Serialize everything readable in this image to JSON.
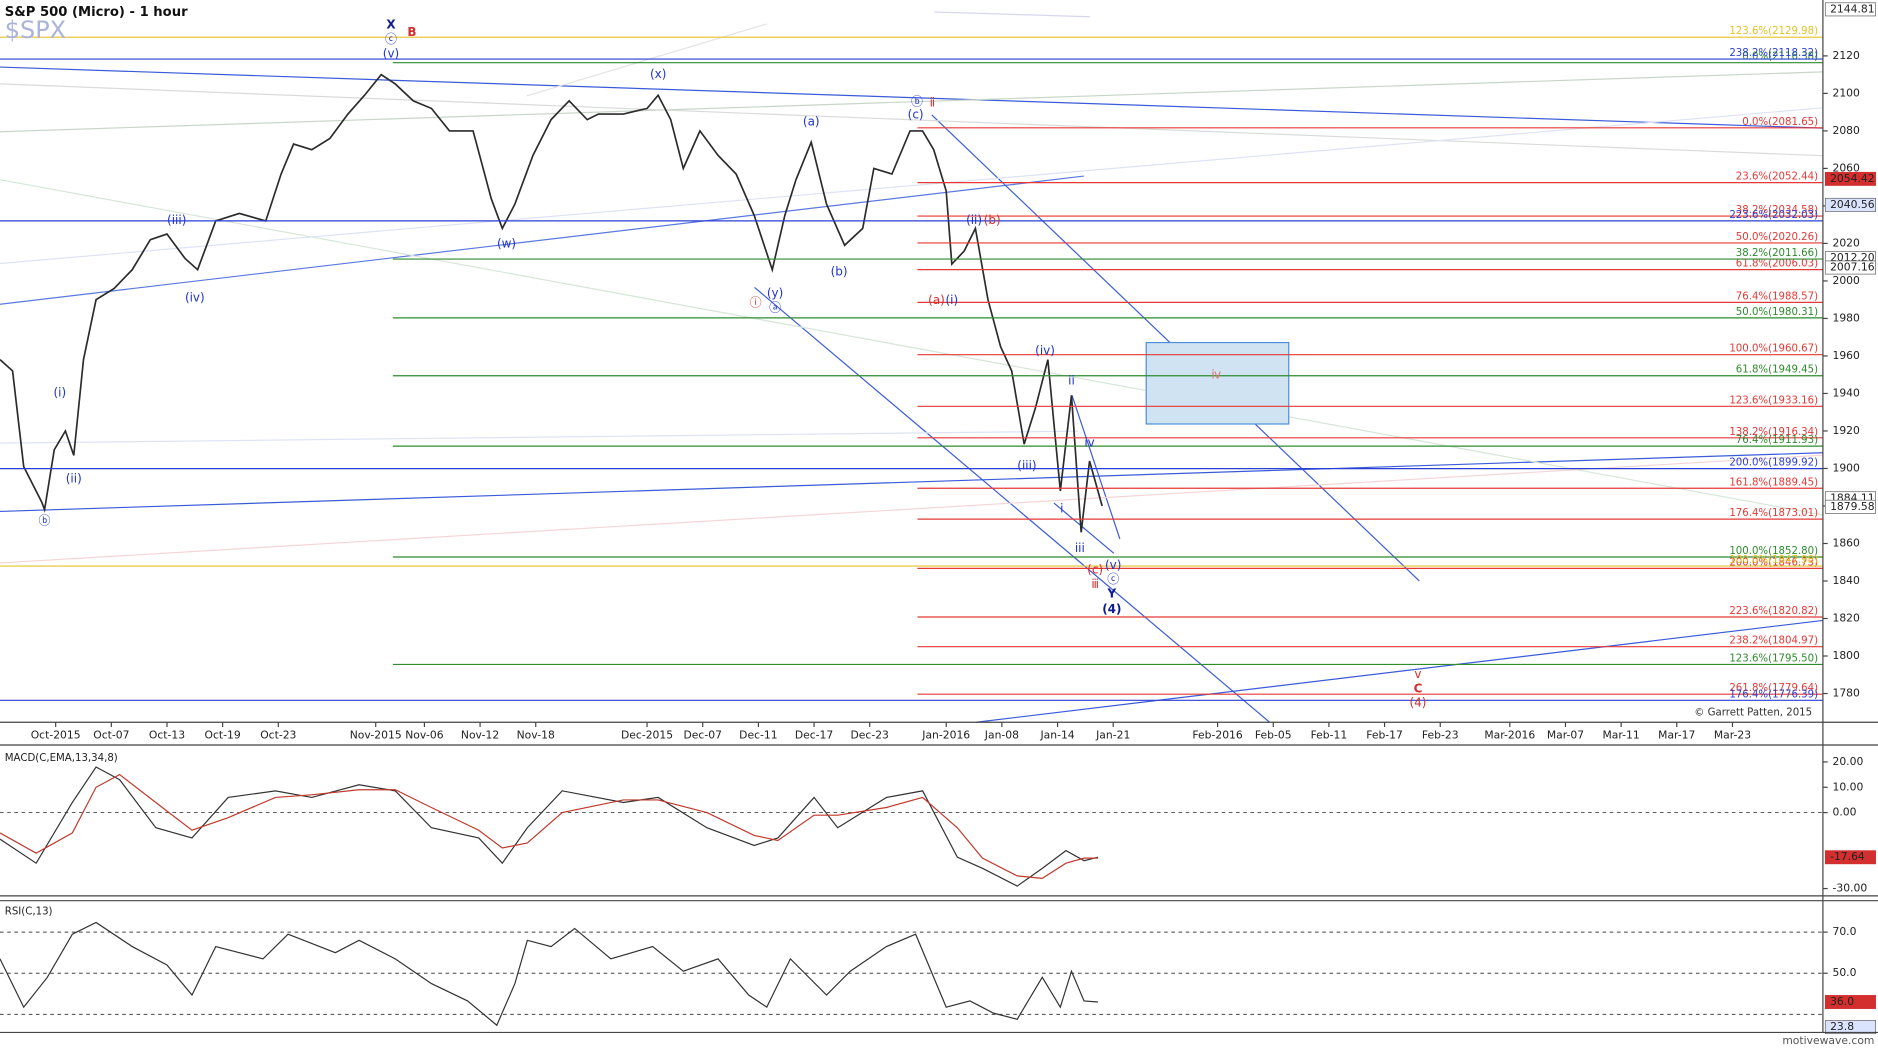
{
  "chart_data": [
    {
      "type": "line",
      "title": "S&P 500 (Micro) - 1 hour",
      "symbol": "$SPX",
      "credit": "© Garrett Patten, 2015",
      "watermark": "motivewave.com",
      "xlim": [
        -4,
        127
      ],
      "xticks": [
        {
          "value": 0,
          "label": "Oct-2015"
        },
        {
          "value": 4,
          "label": "Oct-07"
        },
        {
          "value": 8,
          "label": "Oct-13"
        },
        {
          "value": 12,
          "label": "Oct-19"
        },
        {
          "value": 16,
          "label": "Oct-23"
        },
        {
          "value": 23,
          "label": "Nov-2015"
        },
        {
          "value": 26.5,
          "label": "Nov-06"
        },
        {
          "value": 30.5,
          "label": "Nov-12"
        },
        {
          "value": 34.5,
          "label": "Nov-18"
        },
        {
          "value": 42.5,
          "label": "Dec-2015"
        },
        {
          "value": 46.5,
          "label": "Dec-07"
        },
        {
          "value": 50.5,
          "label": "Dec-11"
        },
        {
          "value": 54.5,
          "label": "Dec-17"
        },
        {
          "value": 58.5,
          "label": "Dec-23"
        },
        {
          "value": 64,
          "label": "Jan-2016"
        },
        {
          "value": 68,
          "label": "Jan-08"
        },
        {
          "value": 72,
          "label": "Jan-14"
        },
        {
          "value": 76,
          "label": "Jan-21"
        },
        {
          "value": 83.5,
          "label": "Feb-2016"
        },
        {
          "value": 87.5,
          "label": "Feb-05"
        },
        {
          "value": 91.5,
          "label": "Feb-11"
        },
        {
          "value": 95.5,
          "label": "Feb-17"
        },
        {
          "value": 99.5,
          "label": "Feb-23"
        },
        {
          "value": 104.5,
          "label": "Mar-2016"
        },
        {
          "value": 108.5,
          "label": "Mar-07"
        },
        {
          "value": 112.5,
          "label": "Mar-11"
        },
        {
          "value": 116.5,
          "label": "Mar-17"
        },
        {
          "value": 120.5,
          "label": "Mar-23"
        }
      ],
      "ylim": [
        1764.7,
        2149.8
      ],
      "yticks": [
        1780,
        1800,
        1820,
        1840,
        1860,
        1880,
        1900,
        1920,
        1940,
        1960,
        1980,
        2000,
        2020,
        2040,
        2060,
        2080,
        2100,
        2120
      ],
      "x": [
        -4.0,
        -3.1,
        -2.3,
        -1.0,
        -0.8,
        -0.1,
        0.7,
        1.3,
        2.0,
        2.9,
        4.2,
        5.5,
        6.8,
        8.0,
        9.3,
        10.2,
        11.5,
        13.2,
        15.1,
        16.2,
        17.1,
        18.4,
        19.7,
        21.0,
        22.2,
        23.4,
        24.4,
        25.7,
        27.0,
        28.3,
        30.0,
        31.3,
        32.1,
        33.0,
        34.3,
        35.6,
        36.9,
        38.2,
        39.0,
        40.8,
        42.5,
        43.3,
        44.2,
        45.1,
        46.3,
        47.6,
        48.9,
        50.2,
        51.5,
        52.4,
        53.2,
        54.3,
        55.4,
        56.7,
        58.0,
        58.8,
        60.1,
        61.4,
        62.3,
        63.1,
        64.0,
        64.4,
        65.3,
        66.1,
        67.0,
        67.9,
        68.7,
        69.6,
        70.4,
        71.3,
        72.2,
        73.0,
        73.7,
        74.3,
        75.2
      ],
      "series": [
        {
          "color": "#2b2b2b",
          "values": [
            1958,
            1952,
            1901,
            1882,
            1878,
            1910,
            1920,
            1907,
            1958,
            1990,
            1996,
            2006,
            2022,
            2025,
            2012,
            2006,
            2032,
            2036,
            2032,
            2057,
            2073,
            2070,
            2076,
            2089,
            2099,
            2110,
            2105,
            2096,
            2092,
            2080,
            2080,
            2044,
            2028,
            2041,
            2067,
            2086,
            2096,
            2086,
            2089,
            2089,
            2092,
            2099,
            2086,
            2060,
            2080,
            2067,
            2057,
            2035,
            2006,
            2035,
            2054,
            2074,
            2041,
            2019,
            2028,
            2060,
            2057,
            2080,
            2080,
            2070,
            2048,
            2009,
            2016,
            2028,
            1990,
            1965,
            1952,
            1913,
            1932,
            1958,
            1888,
            1939,
            1866,
            1904,
            1880
          ]
        }
      ],
      "price_labels": [
        {
          "value": 2144.81,
          "label": "2144.81",
          "color": "#ffffff"
        },
        {
          "value": 2054.42,
          "label": "2054.42",
          "color": "#d32f2f"
        },
        {
          "value": 2040.56,
          "label": "2040.56",
          "color": "#dbe4ff"
        },
        {
          "value": 2012.2,
          "label": "2012.20",
          "color": "#ffffff"
        },
        {
          "value": 2007.16,
          "label": "2007.16",
          "color": "#ffffff"
        },
        {
          "value": 1884.11,
          "label": "1884.11",
          "color": "#ffffff"
        },
        {
          "value": 1879.58,
          "label": "1879.58",
          "color": "#ffffff"
        }
      ],
      "fib_sets": [
        {
          "color": "#e53935",
          "levels": [
            {
              "value": 2081.65,
              "label": "0.0%(2081.65)"
            },
            {
              "value": 2052.44,
              "label": "23.6%(2052.44)"
            },
            {
              "value": 2034.58,
              "label": "38.2%(2034.58)"
            },
            {
              "value": 2020.26,
              "label": "50.0%(2020.26)"
            },
            {
              "value": 2006.03,
              "label": "61.8%(2006.03)"
            },
            {
              "value": 1988.57,
              "label": "76.4%(1988.57)"
            },
            {
              "value": 1960.67,
              "label": "100.0%(1960.67)"
            },
            {
              "value": 1933.16,
              "label": "123.6%(1933.16)"
            },
            {
              "value": 1916.34,
              "label": "138.2%(1916.34)"
            },
            {
              "value": 1889.45,
              "label": "161.8%(1889.45)"
            },
            {
              "value": 1873.01,
              "label": "176.4%(1873.01)"
            },
            {
              "value": 1846.73,
              "label": "200.0%(1846.73)"
            },
            {
              "value": 1820.82,
              "label": "223.6%(1820.82)"
            },
            {
              "value": 1804.97,
              "label": "238.2%(1804.97)"
            },
            {
              "value": 1779.64,
              "label": "261.8%(1779.64)"
            }
          ]
        },
        {
          "color": "#2e8b2e",
          "levels": [
            {
              "value": 2116.38,
              "label": "0.0%(2116.38)"
            },
            {
              "value": 2011.66,
              "label": "38.2%(2011.66)"
            },
            {
              "value": 1980.31,
              "label": "50.0%(1980.31)"
            },
            {
              "value": 1949.45,
              "label": "61.8%(1949.45)"
            },
            {
              "value": 1911.93,
              "label": "76.4%(1911.93)"
            },
            {
              "value": 1852.8,
              "label": "100.0%(1852.80)"
            },
            {
              "value": 1795.5,
              "label": "123.6%(1795.50)"
            }
          ]
        },
        {
          "color": "#2a3fd6",
          "levels": [
            {
              "value": 2118.32,
              "label": "238.2%(2118.32)"
            },
            {
              "value": 2032.03,
              "label": "223.6%(2032.03)"
            },
            {
              "value": 1899.92,
              "label": "200.0%(1899.92)"
            },
            {
              "value": 1776.39,
              "label": "176.4%(1776.39)"
            }
          ]
        },
        {
          "color": "#e6c229",
          "levels": [
            {
              "value": 2129.98,
              "label": "123.6%(2129.98)"
            },
            {
              "value": 1847.98,
              "label": "100.0%(1847.98)"
            }
          ]
        }
      ],
      "annotations": [
        {
          "text": "X",
          "x": 24.1,
          "y": 2136.4,
          "color": "#0d1b8c",
          "bold": true
        },
        {
          "text": "B",
          "x": 25.6,
          "y": 2132.6,
          "color": "#d32f2f",
          "bold": true
        },
        {
          "text": "ⓒ",
          "x": 24.1,
          "y": 2128.7,
          "color": "#2233cc",
          "bold": false
        },
        {
          "text": "(v)",
          "x": 24.1,
          "y": 2121.1,
          "color": "#2233cc",
          "bold": false
        },
        {
          "text": "(x)",
          "x": 43.3,
          "y": 2110.2,
          "color": "#2233cc",
          "bold": false
        },
        {
          "text": "(a)",
          "x": 54.3,
          "y": 2084.7,
          "color": "#2233cc",
          "bold": false
        },
        {
          "text": "ⓑ",
          "x": 61.9,
          "y": 2095.5,
          "color": "#2233cc",
          "bold": false
        },
        {
          "text": "ⅱ",
          "x": 63.0,
          "y": 2094.9,
          "color": "#d32f2f",
          "bold": false
        },
        {
          "text": "(c)",
          "x": 61.8,
          "y": 2088.5,
          "color": "#2233cc",
          "bold": false
        },
        {
          "text": "(w)",
          "x": 32.4,
          "y": 2019.6,
          "color": "#2233cc",
          "bold": false
        },
        {
          "text": "(iii)",
          "x": 8.7,
          "y": 2032.3,
          "color": "#2233cc",
          "bold": false
        },
        {
          "text": "(iv)",
          "x": 10.0,
          "y": 1990.8,
          "color": "#2233cc",
          "bold": false
        },
        {
          "text": "(i)",
          "x": 0.3,
          "y": 1940.3,
          "color": "#2233cc",
          "bold": false
        },
        {
          "text": "(ii)",
          "x": 1.3,
          "y": 1894.3,
          "color": "#2233cc",
          "bold": false
        },
        {
          "text": "ⓑ",
          "x": -0.8,
          "y": 1872.0,
          "color": "#2233cc",
          "bold": false
        },
        {
          "text": "(b)",
          "x": 56.3,
          "y": 2004.8,
          "color": "#2233cc",
          "bold": false
        },
        {
          "text": "(y)",
          "x": 51.7,
          "y": 1993.3,
          "color": "#2233cc",
          "bold": false
        },
        {
          "text": "ⓐ",
          "x": 51.7,
          "y": 1985.7,
          "color": "#2233cc",
          "bold": false
        },
        {
          "text": "ⓘ",
          "x": 50.3,
          "y": 1988.2,
          "color": "#d32f2f",
          "bold": false
        },
        {
          "text": "(ii)",
          "x": 66.0,
          "y": 2032.3,
          "color": "#2233cc",
          "bold": false
        },
        {
          "text": "(b)",
          "x": 67.3,
          "y": 2032.3,
          "color": "#d32f2f",
          "bold": false
        },
        {
          "text": "(a)",
          "x": 63.3,
          "y": 1989.5,
          "color": "#d32f2f",
          "bold": false
        },
        {
          "text": "(i)",
          "x": 64.4,
          "y": 1989.5,
          "color": "#2233cc",
          "bold": false
        },
        {
          "text": "(iv)",
          "x": 71.1,
          "y": 1962.7,
          "color": "#2233cc",
          "bold": false
        },
        {
          "text": "ii",
          "x": 73.0,
          "y": 1946.7,
          "color": "#2233cc",
          "bold": false
        },
        {
          "text": "(iii)",
          "x": 69.8,
          "y": 1901.4,
          "color": "#2233cc",
          "bold": false
        },
        {
          "text": "iv",
          "x": 74.3,
          "y": 1913.5,
          "color": "#2233cc",
          "bold": false
        },
        {
          "text": "i",
          "x": 72.3,
          "y": 1878.4,
          "color": "#2233cc",
          "bold": false
        },
        {
          "text": "iii",
          "x": 73.6,
          "y": 1857.3,
          "color": "#2233cc",
          "bold": false
        },
        {
          "text": "(v)",
          "x": 76.0,
          "y": 1848.3,
          "color": "#2233cc",
          "bold": false
        },
        {
          "text": "(c)",
          "x": 74.7,
          "y": 1845.8,
          "color": "#d32f2f",
          "bold": false
        },
        {
          "text": "ⓒ",
          "x": 76.0,
          "y": 1840.7,
          "color": "#2233cc",
          "bold": false
        },
        {
          "text": "ⅲ",
          "x": 74.7,
          "y": 1838.1,
          "color": "#d32f2f",
          "bold": false
        },
        {
          "text": "Y",
          "x": 75.9,
          "y": 1833.0,
          "color": "#0d1b8c",
          "bold": true
        },
        {
          "text": "(4)",
          "x": 75.9,
          "y": 1824.7,
          "color": "#0d1b8c",
          "bold": true
        },
        {
          "text": "ⅳ",
          "x": 83.4,
          "y": 1949.9,
          "color": "#e57373",
          "bold": false
        },
        {
          "text": "ⅴ",
          "x": 97.9,
          "y": 1790.2,
          "color": "#d32f2f",
          "bold": false
        },
        {
          "text": "C",
          "x": 97.9,
          "y": 1782.5,
          "color": "#d32f2f",
          "bold": true
        },
        {
          "text": "(4)",
          "x": 97.9,
          "y": 1774.9,
          "color": "#d32f2f",
          "bold": false
        }
      ]
    },
    {
      "type": "line",
      "title": "MACD(C,EMA,13,34,8)",
      "ylim": [
        -32.9,
        26.7
      ],
      "yticks": [
        {
          "value": 20,
          "label": "20.00"
        },
        {
          "value": 10,
          "label": "10.00"
        },
        {
          "value": 0,
          "label": "0.00"
        },
        {
          "value": -30,
          "label": "-30.00"
        }
      ],
      "hlines": [
        0
      ],
      "x": [
        -4.0,
        -1.4,
        1.2,
        2.9,
        4.6,
        7.2,
        9.8,
        12.4,
        15.8,
        18.4,
        21.8,
        24.4,
        27.0,
        30.4,
        32.1,
        33.9,
        36.4,
        40.8,
        43.3,
        46.8,
        50.2,
        51.9,
        54.5,
        56.2,
        59.7,
        62.3,
        64.8,
        66.6,
        69.1,
        70.9,
        72.6,
        73.9,
        74.9
      ],
      "series": [
        {
          "color": "#333333",
          "values": [
            -10.5,
            -20,
            4,
            18,
            13,
            -6,
            -10,
            6,
            8.6,
            6,
            11,
            8.6,
            -6,
            -10,
            -20,
            -6,
            8.6,
            4,
            6,
            -6,
            -13,
            -10,
            6,
            -6,
            6,
            8.6,
            -17.6,
            -22,
            -29,
            -22,
            -15,
            -19,
            -17.64
          ]
        },
        {
          "color": "#c0392b",
          "values": [
            -8,
            -16,
            -8,
            10,
            15,
            4,
            -7,
            -2,
            6,
            7,
            9,
            9,
            2,
            -7,
            -14,
            -12,
            0,
            5,
            5,
            0,
            -9,
            -11,
            -1,
            -1,
            2,
            6,
            -6,
            -18,
            -25,
            -26,
            -20,
            -18,
            -18
          ]
        }
      ],
      "current_labels": [
        {
          "value": -17.64,
          "label": "-17.64",
          "color": "#d32f2f"
        }
      ]
    },
    {
      "type": "line",
      "title": "RSI(C,13)",
      "ylim": [
        21.2,
        85.3
      ],
      "yticks": [
        {
          "value": 70,
          "label": "70.0"
        },
        {
          "value": 50,
          "label": "50.0"
        }
      ],
      "hlines": [
        70,
        50,
        30
      ],
      "x": [
        -4.0,
        -2.3,
        -0.6,
        1.2,
        2.9,
        5.5,
        8.0,
        9.8,
        11.5,
        14.9,
        16.7,
        20.1,
        21.8,
        24.4,
        27.0,
        29.6,
        31.7,
        33.0,
        33.9,
        35.6,
        37.3,
        39.9,
        42.9,
        45.1,
        47.6,
        49.8,
        51.1,
        52.8,
        55.4,
        57.1,
        59.7,
        61.8,
        64.0,
        65.7,
        67.4,
        69.1,
        70.9,
        72.2,
        73.0,
        73.9,
        74.9
      ],
      "series": [
        {
          "color": "#333333",
          "values": [
            57,
            33.5,
            48,
            69,
            74.7,
            63,
            54,
            39.4,
            63,
            57,
            69,
            60,
            66,
            57,
            45,
            36.5,
            24.7,
            45,
            66,
            63,
            71.8,
            57,
            63,
            51,
            57,
            39.4,
            33.5,
            57,
            39.4,
            51,
            63,
            69,
            33.5,
            36.5,
            30.6,
            27.6,
            48,
            33.5,
            51,
            36.5,
            36
          ]
        }
      ],
      "current_labels": [
        {
          "value": 36,
          "label": "36.0",
          "color": "#d32f2f"
        },
        {
          "value": 23.8,
          "label": "23.8",
          "color": "#dbe4ff"
        }
      ]
    }
  ]
}
